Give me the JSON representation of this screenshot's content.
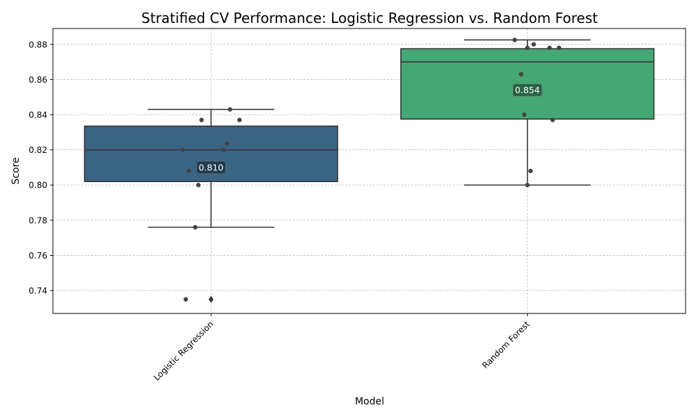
{
  "chart_data": {
    "type": "box",
    "title": "Stratified CV Performance: Logistic Regression vs. Random Forest",
    "xlabel": "Model",
    "ylabel": "Score",
    "categories": [
      "Logistic Regression",
      "Random Forest"
    ],
    "ylim": [
      0.727,
      0.889
    ],
    "yticks": [
      0.74,
      0.76,
      0.78,
      0.8,
      0.82,
      0.84,
      0.86,
      0.88
    ],
    "ytick_labels": [
      "0.74",
      "0.76",
      "0.78",
      "0.80",
      "0.82",
      "0.84",
      "0.86",
      "0.88"
    ],
    "grid": true,
    "series": [
      {
        "category": "Logistic Regression",
        "color": "#3a6584",
        "q1": 0.802,
        "median": 0.82,
        "q3": 0.8335,
        "whisker_low": 0.776,
        "whisker_high": 0.843,
        "outliers": [
          0.735
        ],
        "mean": 0.81,
        "mean_label": "0.810",
        "points": [
          0.843,
          0.837,
          0.837,
          0.8235,
          0.82,
          0.82,
          0.808,
          0.8,
          0.776,
          0.735
        ],
        "jitter": [
          0.06,
          -0.03,
          0.09,
          0.05,
          -0.09,
          0.04,
          -0.07,
          -0.04,
          -0.05,
          -0.08
        ]
      },
      {
        "category": "Random Forest",
        "color": "#45a874",
        "q1": 0.8375,
        "median": 0.87,
        "q3": 0.8775,
        "whisker_low": 0.8,
        "whisker_high": 0.8825,
        "outliers": [],
        "mean": 0.854,
        "mean_label": "0.854",
        "points": [
          0.8825,
          0.88,
          0.878,
          0.878,
          0.878,
          0.863,
          0.84,
          0.837,
          0.808,
          0.8
        ],
        "jitter": [
          -0.04,
          0.02,
          0.0,
          0.07,
          0.1,
          -0.02,
          -0.01,
          0.08,
          0.01,
          0.0
        ]
      }
    ]
  }
}
